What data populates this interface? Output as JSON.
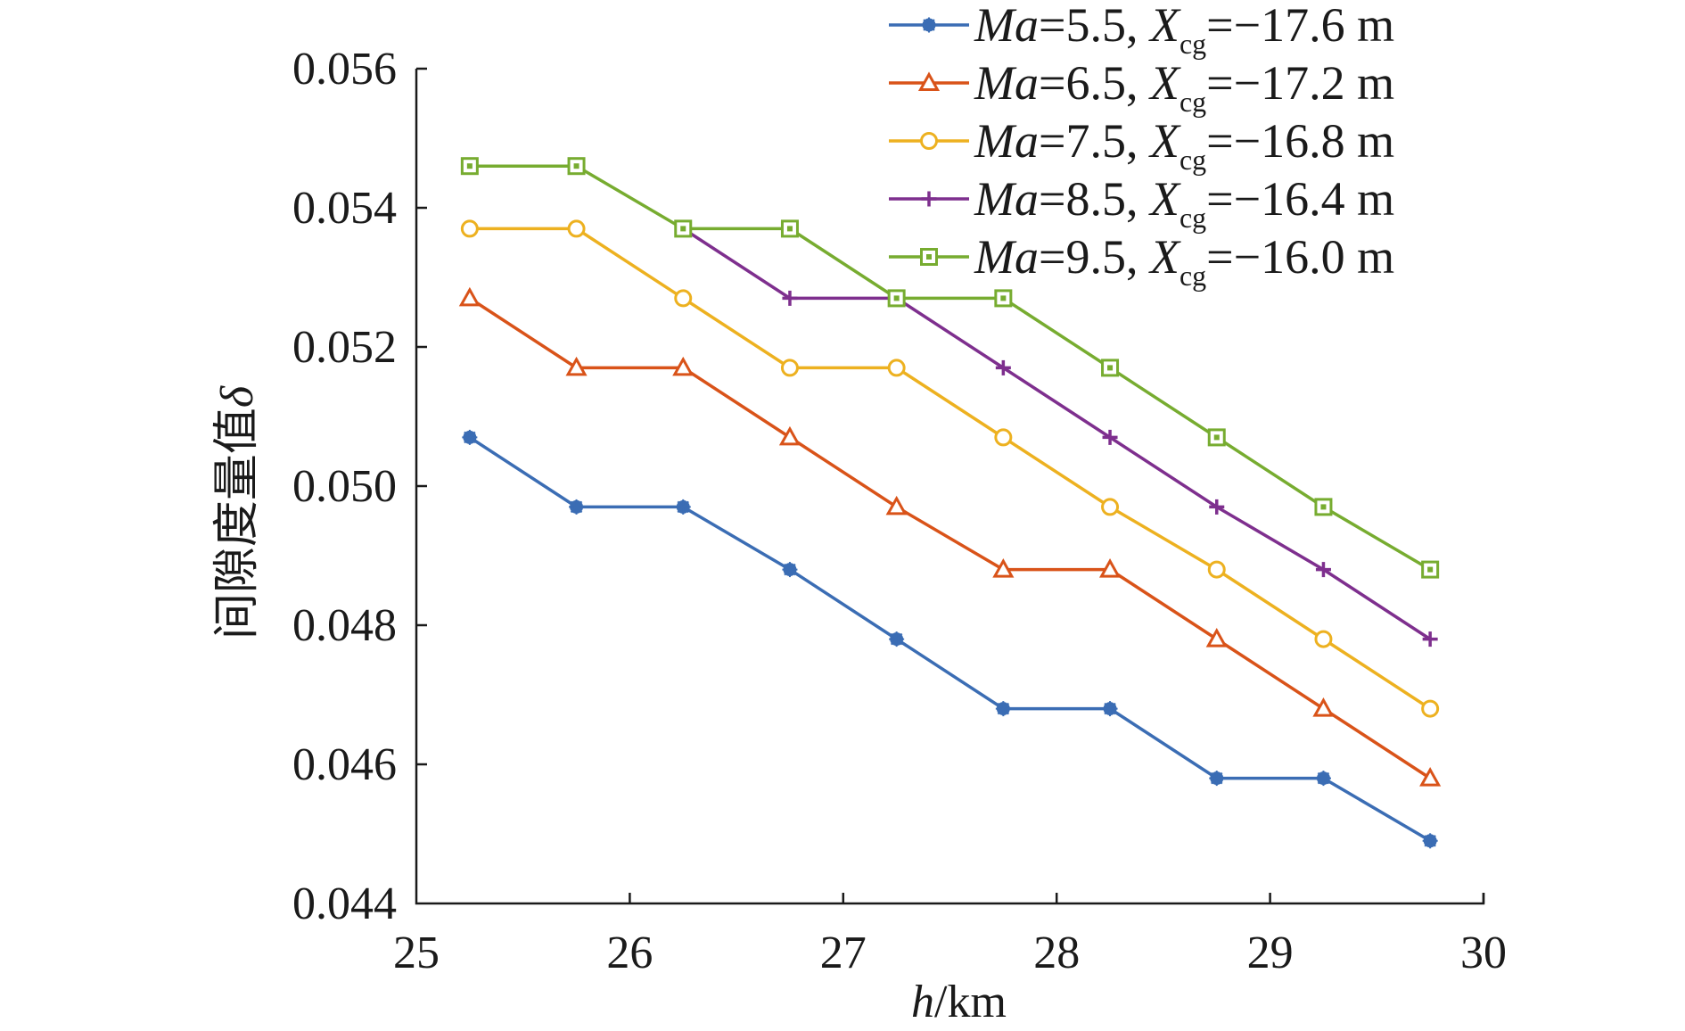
{
  "chart_data": {
    "type": "line",
    "title": "",
    "xlabel_var": "h",
    "xlabel_unit": "/km",
    "ylabel_text": "间隙度量值",
    "ylabel_symbol": "δ",
    "xlim": [
      25,
      30
    ],
    "ylim": [
      0.044,
      0.056
    ],
    "xticks": [
      25,
      26,
      27,
      28,
      29,
      30
    ],
    "yticks": [
      "0.044",
      "0.046",
      "0.048",
      "0.050",
      "0.052",
      "0.054",
      "0.056"
    ],
    "legend_position": "top-right",
    "series": [
      {
        "name": "Ma=5.5, Xcg=−17.6 m",
        "ma_label": "Ma",
        "ma_value": "=5.5, ",
        "x_label": "X",
        "x_sub": "cg",
        "x_value": "=−17.6 m",
        "color": "#3b6db4",
        "marker": "star",
        "x": [
          25.25,
          25.75,
          26.25,
          26.75,
          27.25,
          27.75,
          28.25,
          28.75,
          29.25,
          29.75
        ],
        "values": [
          0.0507,
          0.0497,
          0.0497,
          0.0488,
          0.0478,
          0.0468,
          0.0468,
          0.0458,
          0.0458,
          0.0449
        ]
      },
      {
        "name": "Ma=6.5, Xcg=−17.2 m",
        "ma_label": "Ma",
        "ma_value": "=6.5, ",
        "x_label": "X",
        "x_sub": "cg",
        "x_value": "=−17.2 m",
        "color": "#d95319",
        "marker": "triangle",
        "x": [
          25.25,
          25.75,
          26.25,
          26.75,
          27.25,
          27.75,
          28.25,
          28.75,
          29.25,
          29.75
        ],
        "values": [
          0.0527,
          0.0517,
          0.0517,
          0.0507,
          0.0497,
          0.0488,
          0.0488,
          0.0478,
          0.0468,
          0.0458
        ]
      },
      {
        "name": "Ma=7.5, Xcg=−16.8 m",
        "ma_label": "Ma",
        "ma_value": "=7.5, ",
        "x_label": "X",
        "x_sub": "cg",
        "x_value": "=−16.8 m",
        "color": "#edb120",
        "marker": "circle",
        "x": [
          25.25,
          25.75,
          26.25,
          26.75,
          27.25,
          27.75,
          28.25,
          28.75,
          29.25,
          29.75
        ],
        "values": [
          0.0537,
          0.0537,
          0.0527,
          0.0517,
          0.0517,
          0.0507,
          0.0497,
          0.0488,
          0.0478,
          0.0468
        ]
      },
      {
        "name": "Ma=8.5, Xcg=−16.4 m",
        "ma_label": "Ma",
        "ma_value": "=8.5, ",
        "x_label": "X",
        "x_sub": "cg",
        "x_value": "=−16.4 m",
        "color": "#7e2f8e",
        "marker": "plus",
        "x": [
          26.25,
          26.75,
          27.25,
          27.75,
          28.25,
          28.75,
          29.25,
          29.75
        ],
        "values": [
          0.0537,
          0.0527,
          0.0527,
          0.0517,
          0.0507,
          0.0497,
          0.0488,
          0.0478
        ]
      },
      {
        "name": "Ma=9.5, Xcg=−16.0 m",
        "ma_label": "Ma",
        "ma_value": "=9.5, ",
        "x_label": "X",
        "x_sub": "cg",
        "x_value": "=−16.0 m",
        "color": "#77ac30",
        "marker": "square",
        "x": [
          25.25,
          25.75,
          26.25,
          26.75,
          27.25,
          27.75,
          28.25,
          28.75,
          29.25,
          29.75
        ],
        "values": [
          0.0546,
          0.0546,
          0.0537,
          0.0537,
          0.0527,
          0.0527,
          0.0517,
          0.0507,
          0.0497,
          0.0488
        ]
      }
    ]
  }
}
